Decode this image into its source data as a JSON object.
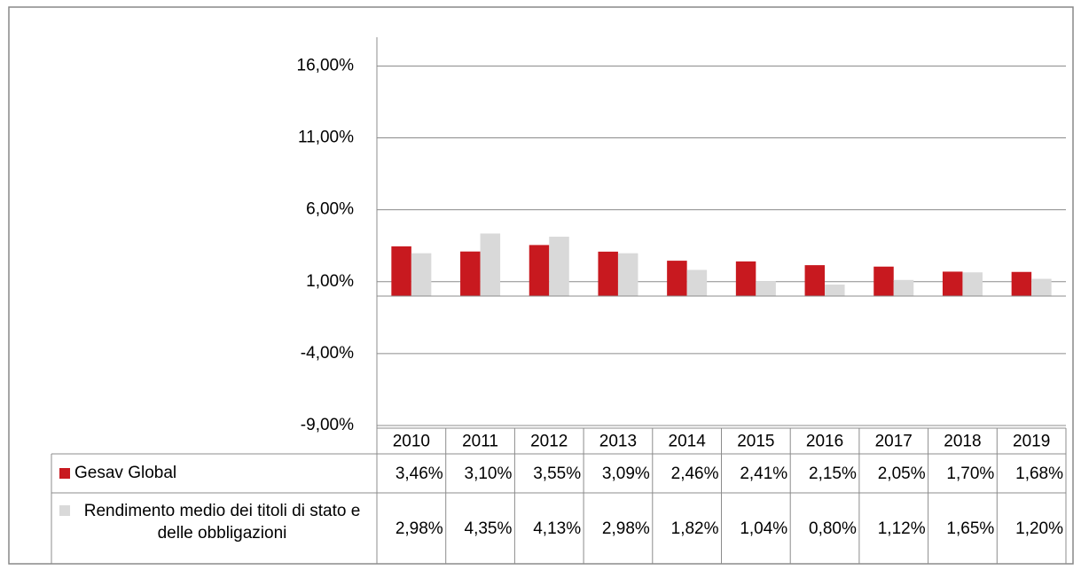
{
  "chart_data": {
    "type": "bar",
    "categories": [
      "2010",
      "2011",
      "2012",
      "2013",
      "2014",
      "2015",
      "2016",
      "2017",
      "2018",
      "2019"
    ],
    "series": [
      {
        "name": "Gesav Global",
        "color": "#c8191f",
        "values": [
          3.46,
          3.1,
          3.55,
          3.09,
          2.46,
          2.41,
          2.15,
          2.05,
          1.7,
          1.68
        ],
        "value_labels": [
          "3,46%",
          "3,10%",
          "3,55%",
          "3,09%",
          "2,46%",
          "2,41%",
          "2,15%",
          "2,05%",
          "1,70%",
          "1,68%"
        ]
      },
      {
        "name": "Rendimento medio dei titoli di stato e delle obbligazioni",
        "color": "#d9d9d9",
        "values": [
          2.98,
          4.35,
          4.13,
          2.98,
          1.82,
          1.04,
          0.8,
          1.12,
          1.65,
          1.2
        ],
        "value_labels": [
          "2,98%",
          "4,35%",
          "4,13%",
          "2,98%",
          "1,82%",
          "1,04%",
          "0,80%",
          "1,12%",
          "1,65%",
          "1,20%"
        ]
      }
    ],
    "ylim": [
      -9,
      18
    ],
    "yticks": [
      {
        "value": -9,
        "label": "-9,00%"
      },
      {
        "value": -4,
        "label": "-4,00%"
      },
      {
        "value": 1,
        "label": "1,00%"
      },
      {
        "value": 6,
        "label": "6,00%"
      },
      {
        "value": 11,
        "label": "11,00%"
      },
      {
        "value": 16,
        "label": "16,00%"
      }
    ],
    "grid": true
  }
}
